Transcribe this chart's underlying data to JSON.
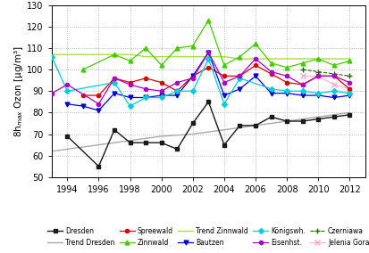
{
  "years": [
    1993,
    1994,
    1995,
    1996,
    1997,
    1998,
    1999,
    2000,
    2001,
    2002,
    2003,
    2004,
    2005,
    2006,
    2007,
    2008,
    2009,
    2010,
    2011,
    2012
  ],
  "Dresden": [
    null,
    69,
    null,
    55,
    72,
    66,
    66,
    66,
    63,
    75,
    85,
    65,
    74,
    74,
    78,
    76,
    76,
    77,
    78,
    79
  ],
  "Trend_Dresden": [
    62,
    63,
    64,
    65,
    66,
    67,
    68,
    69,
    69.5,
    70,
    71,
    72,
    73,
    74,
    75,
    76,
    77,
    78,
    79,
    80
  ],
  "Spreewald": [
    null,
    null,
    88,
    88,
    96,
    94,
    96,
    94,
    90,
    97,
    101,
    97,
    97,
    102,
    98,
    94,
    93,
    97,
    97,
    91
  ],
  "Zinnwald": [
    null,
    null,
    100,
    null,
    107,
    104,
    110,
    102,
    110,
    111,
    123,
    102,
    106,
    112,
    103,
    101,
    103,
    105,
    102,
    104
  ],
  "Trend_Zinnwald": [
    107,
    107,
    107,
    107,
    107,
    107,
    106,
    106,
    106,
    106,
    106,
    106,
    105,
    105,
    105,
    105,
    105,
    105,
    105,
    105
  ],
  "Bautzen": [
    null,
    84,
    83,
    81,
    89,
    87,
    87,
    88,
    88,
    97,
    108,
    88,
    91,
    97,
    89,
    89,
    88,
    88,
    87,
    88
  ],
  "Konigswh": [
    106,
    90,
    null,
    null,
    94,
    83,
    87,
    87,
    90,
    90,
    105,
    84,
    96,
    null,
    91,
    90,
    90,
    89,
    90,
    89
  ],
  "Eisenhst": [
    89,
    93,
    null,
    84,
    96,
    93,
    91,
    90,
    94,
    96,
    108,
    94,
    97,
    105,
    99,
    97,
    93,
    97,
    97,
    94
  ],
  "Czerniawa": [
    null,
    null,
    null,
    null,
    null,
    null,
    null,
    null,
    null,
    null,
    null,
    null,
    null,
    null,
    null,
    null,
    100,
    99,
    98,
    97
  ],
  "Jelenia_Gora": [
    null,
    null,
    null,
    null,
    null,
    null,
    null,
    null,
    null,
    null,
    null,
    null,
    null,
    null,
    null,
    null,
    97,
    97,
    93,
    91
  ],
  "xlim": [
    1993,
    2013
  ],
  "ylim": [
    50,
    130
  ],
  "yticks": [
    50,
    60,
    70,
    80,
    90,
    100,
    110,
    120,
    130
  ],
  "xticks": [
    1994,
    1996,
    1998,
    2000,
    2002,
    2004,
    2006,
    2008,
    2010,
    2012
  ],
  "ylabel": "8h$_{max}$ Ozon [μg/m³]",
  "colors": {
    "Dresden": "#1a1a1a",
    "Trend_Dresden": "#aaaaaa",
    "Spreewald": "#dd0000",
    "Zinnwald": "#44cc00",
    "Trend_Zinnwald": "#aadd44",
    "Bautzen": "#0000dd",
    "Konigswh": "#00ccdd",
    "Eisenhst": "#aa00cc",
    "Czerniawa": "#226600",
    "Jelenia_Gora": "#ffaacc"
  },
  "legend_labels": [
    "Dresden",
    "Trend Dresden",
    "Spreewald",
    "Zinnwald",
    "Trend Zinnwald",
    "Bautzen",
    "Königswh.",
    "Eisenhst.",
    "Czerniawa",
    "Jelenia Gora"
  ]
}
